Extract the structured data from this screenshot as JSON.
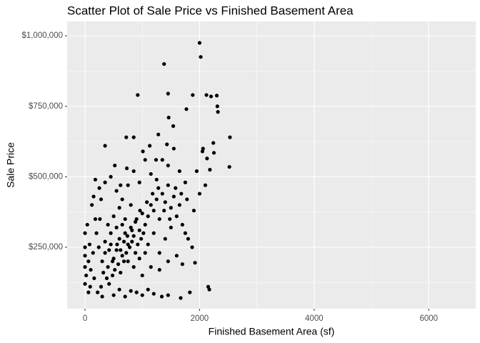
{
  "chart_data": {
    "type": "scatter",
    "title": "Scatter Plot of Sale Price vs Finished Basement Area",
    "x_label": "Finished Basement Area (sf)",
    "y_label": "Sale Price",
    "color": "#000000",
    "background": "#ebebeb",
    "grid": true,
    "xlim": [
      -312,
      6820
    ],
    "ylim": [
      32000,
      1051000
    ],
    "xticks": [
      0,
      2000,
      4000,
      6000
    ],
    "x_minor_ticks": [
      1000,
      3000,
      5000
    ],
    "yticks": [
      {
        "value": 250000,
        "label": "$250,000"
      },
      {
        "value": 500000,
        "label": "$500,000"
      },
      {
        "value": 750000,
        "label": "$750,000"
      },
      {
        "value": 1000000,
        "label": "$1,000,000"
      }
    ],
    "y_minor_ticks": [
      125000,
      375000,
      625000,
      875000
    ],
    "x": [
      2000,
      2020,
      1380,
      2120,
      2200,
      2300,
      1450,
      920,
      1880,
      2310,
      2320,
      1770,
      1460,
      2530,
      2520,
      720,
      1280,
      1540,
      350,
      2050,
      2250,
      2240,
      2130,
      2180,
      1430,
      2150,
      2170,
      1830,
      1670,
      1340,
      1450,
      1870,
      1920,
      300,
      350,
      400,
      450,
      500,
      550,
      600,
      650,
      700,
      750,
      800,
      850,
      900,
      950,
      1000,
      320,
      380,
      420,
      480,
      520,
      580,
      620,
      680,
      720,
      780,
      820,
      880,
      920,
      980,
      1050,
      1100,
      1150,
      1200,
      1250,
      1300,
      1350,
      1400,
      1450,
      1500,
      1550,
      1600,
      1650,
      1700,
      1750,
      1800,
      1100,
      1200,
      1300,
      1400,
      1500,
      0,
      0,
      0,
      0,
      0,
      20,
      40,
      60,
      80,
      100,
      120,
      140,
      160,
      180,
      200,
      220,
      240,
      260,
      280,
      150,
      250,
      350,
      450,
      550,
      650,
      750,
      850,
      950,
      1050,
      1150,
      1250,
      1350,
      1450,
      1550,
      1650,
      1750,
      900,
      1000,
      1100,
      1200,
      700,
      500,
      300,
      600,
      800,
      1000,
      1150,
      1300,
      1450,
      1600,
      1700,
      400,
      500,
      600,
      700,
      800,
      450,
      550,
      650,
      750,
      850,
      950,
      1050,
      350,
      420,
      480,
      560,
      620,
      680,
      740,
      820,
      880,
      960,
      1020,
      1080,
      1180,
      1280,
      1380,
      1480,
      1580,
      1680,
      1780,
      1900,
      2000,
      2100,
      1950,
      2060,
      1010,
      1130,
      850,
      1240,
      730,
      620,
      520,
      280,
      180,
      90,
      60
    ],
    "y": [
      975000,
      925000,
      900000,
      790000,
      785000,
      788000,
      795000,
      790000,
      790000,
      750000,
      730000,
      740000,
      710000,
      640000,
      535000,
      640000,
      650000,
      680000,
      610000,
      590000,
      585000,
      620000,
      565000,
      525000,
      615000,
      110000,
      100000,
      90000,
      70000,
      75000,
      80000,
      250000,
      195000,
      200000,
      230000,
      180000,
      260000,
      210000,
      240000,
      280000,
      220000,
      300000,
      260000,
      320000,
      290000,
      350000,
      310000,
      370000,
      160000,
      140000,
      120000,
      150000,
      170000,
      190000,
      160000,
      200000,
      230000,
      250000,
      270000,
      230000,
      260000,
      280000,
      330000,
      360000,
      400000,
      380000,
      420000,
      350000,
      440000,
      410000,
      470000,
      390000,
      430000,
      360000,
      400000,
      330000,
      300000,
      280000,
      260000,
      300000,
      230000,
      280000,
      320000,
      250000,
      180000,
      120000,
      300000,
      220000,
      150000,
      330000,
      200000,
      260000,
      170000,
      400000,
      230000,
      140000,
      490000,
      300000,
      90000,
      250000,
      350000,
      110000,
      430000,
      460000,
      480000,
      500000,
      450000,
      420000,
      470000,
      520000,
      480000,
      560000,
      510000,
      490000,
      560000,
      540000,
      600000,
      520000,
      480000,
      90000,
      80000,
      100000,
      85000,
      75000,
      80000,
      75000,
      100000,
      95000,
      150000,
      180000,
      170000,
      200000,
      220000,
      190000,
      330000,
      360000,
      390000,
      350000,
      400000,
      300000,
      320000,
      330000,
      200000,
      180000,
      210000,
      230000,
      270000,
      240000,
      200000,
      260000,
      240000,
      270000,
      290000,
      310000,
      340000,
      380000,
      300000,
      410000,
      440000,
      460000,
      380000,
      350000,
      460000,
      440000,
      420000,
      380000,
      440000,
      470000,
      520000,
      600000,
      590000,
      610000,
      640000,
      560000,
      530000,
      470000,
      540000,
      420000,
      350000,
      110000,
      90000
    ]
  }
}
